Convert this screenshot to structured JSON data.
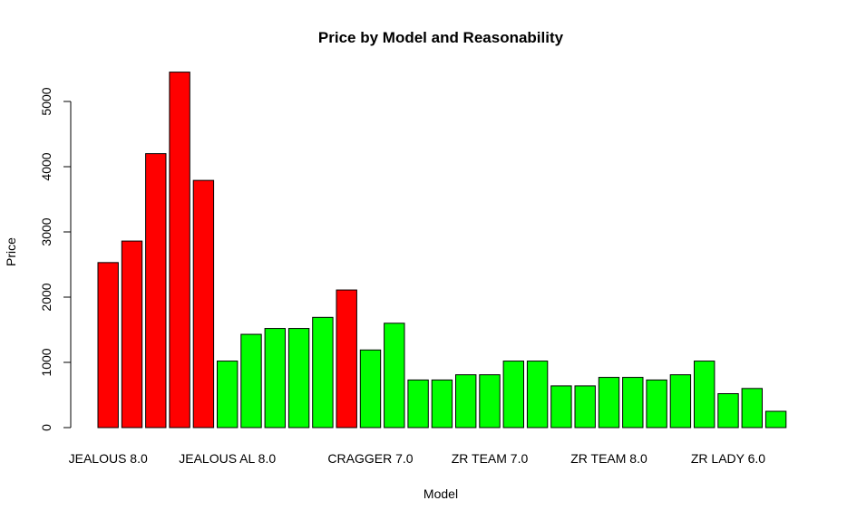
{
  "chart_data": {
    "type": "bar",
    "title": "Price by Model and Reasonability",
    "xlabel": "Model",
    "ylabel": "Price",
    "ylim": [
      0,
      5500
    ],
    "yticks": [
      0,
      1000,
      2000,
      3000,
      4000,
      5000
    ],
    "grid": false,
    "legend": "none",
    "x_tick_labels": [
      {
        "index": 0,
        "label": "JEALOUS 8.0"
      },
      {
        "index": 5,
        "label": "JEALOUS AL 8.0"
      },
      {
        "index": 11,
        "label": "CRAGGER 7.0"
      },
      {
        "index": 16,
        "label": "ZR TEAM 7.0"
      },
      {
        "index": 21,
        "label": "ZR TEAM 8.0"
      },
      {
        "index": 26,
        "label": "ZR LADY 6.0"
      }
    ],
    "values": [
      2530,
      2860,
      4200,
      5450,
      3790,
      1020,
      1430,
      1520,
      1520,
      1690,
      2110,
      1190,
      1600,
      730,
      730,
      810,
      810,
      1020,
      1020,
      640,
      640,
      770,
      770,
      730,
      810,
      1020,
      520,
      600,
      250
    ],
    "reasonable": [
      false,
      false,
      false,
      false,
      false,
      true,
      true,
      true,
      true,
      true,
      false,
      true,
      true,
      true,
      true,
      true,
      true,
      true,
      true,
      true,
      true,
      true,
      true,
      true,
      true,
      true,
      true,
      true,
      true
    ],
    "colors": {
      "unreasonable": "#ff0000",
      "reasonable": "#00ff00",
      "border": "#000000"
    }
  }
}
